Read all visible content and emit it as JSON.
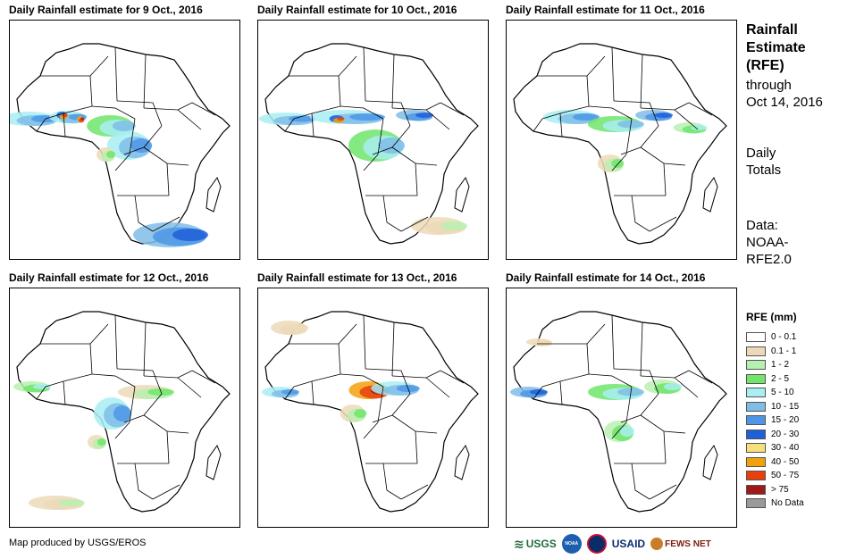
{
  "panels": [
    {
      "title": "Daily Rainfall estimate for 9 Oct., 2016"
    },
    {
      "title": "Daily Rainfall estimate for 10 Oct., 2016"
    },
    {
      "title": "Daily Rainfall estimate for 11 Oct., 2016"
    },
    {
      "title": "Daily Rainfall estimate for 12 Oct., 2016"
    },
    {
      "title": "Daily Rainfall estimate for 13 Oct., 2016"
    },
    {
      "title": "Daily Rainfall estimate for 14 Oct., 2016"
    }
  ],
  "sidebar": {
    "title_line1": "Rainfall",
    "title_line2": "Estimate",
    "title_line3": "(RFE)",
    "through_line1": "through",
    "through_line2": "Oct 14, 2016",
    "totals_line1": "Daily",
    "totals_line2": "Totals",
    "data_line1": "Data:",
    "data_line2": "NOAA-",
    "data_line3": "RFE2.0"
  },
  "legend": {
    "title": "RFE (mm)",
    "items": [
      {
        "label": "0 - 0.1",
        "color": "#ffffff"
      },
      {
        "label": "0.1 - 1",
        "color": "#ecd9b8"
      },
      {
        "label": "1 - 2",
        "color": "#b8f0b0"
      },
      {
        "label": "2 - 5",
        "color": "#6fe56a"
      },
      {
        "label": "5 - 10",
        "color": "#a8eef2"
      },
      {
        "label": "10 - 15",
        "color": "#7fbde8"
      },
      {
        "label": "15 - 20",
        "color": "#4d96e6"
      },
      {
        "label": "20 - 30",
        "color": "#1f5fd8"
      },
      {
        "label": "30 - 40",
        "color": "#f6e07e"
      },
      {
        "label": "40 - 50",
        "color": "#f2a10d"
      },
      {
        "label": "50 - 75",
        "color": "#e8400c"
      },
      {
        "label": "> 75",
        "color": "#a01818"
      },
      {
        "label": "No Data",
        "color": "#9a9a9a"
      }
    ]
  },
  "footer": {
    "credit": "Map produced by USGS/EROS",
    "logos": {
      "usgs": "USGS",
      "noaa": "NOAA",
      "usaid": "USAID",
      "fews": "FEWS NET"
    }
  }
}
